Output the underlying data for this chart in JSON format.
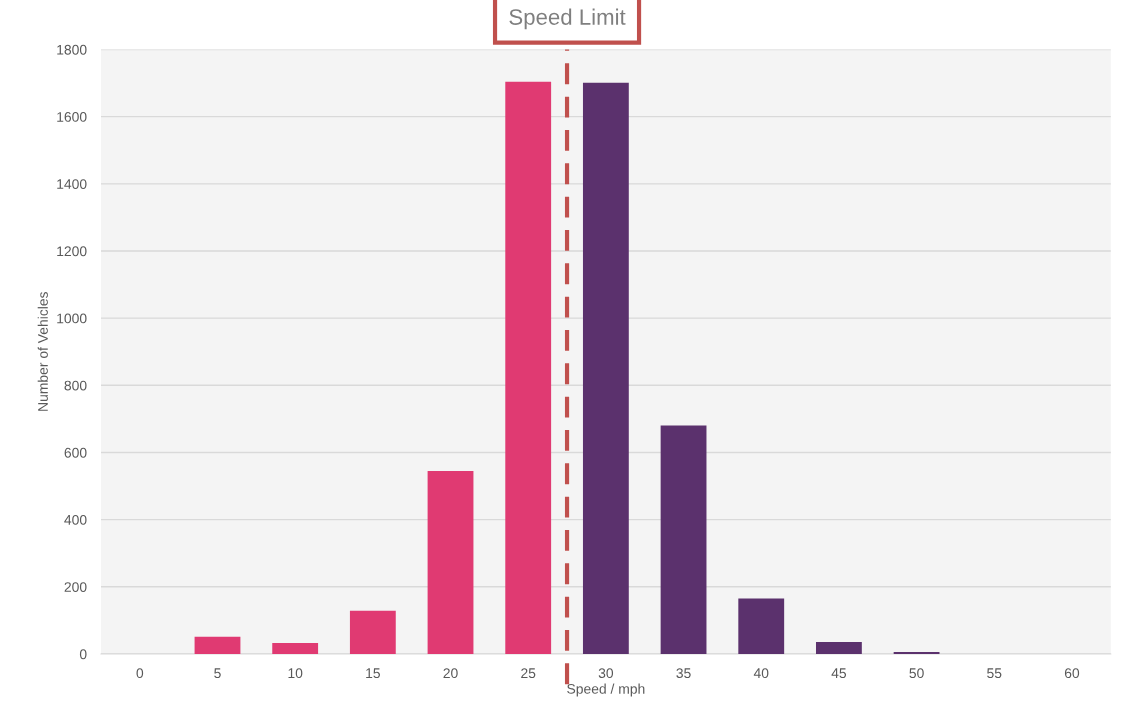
{
  "chart_data": {
    "type": "bar",
    "xlabel": "Speed / mph",
    "ylabel": "Number of Vehicles",
    "x": [
      0,
      5,
      10,
      15,
      20,
      25,
      30,
      35,
      40,
      45,
      50,
      55,
      60
    ],
    "values": [
      0,
      51,
      33,
      129,
      545,
      1704,
      1701,
      680,
      165,
      36,
      6,
      0,
      0
    ],
    "colors": [
      "#e03a72",
      "#e03a72",
      "#e03a72",
      "#e03a72",
      "#e03a72",
      "#e03a72",
      "#5b316d",
      "#5b316d",
      "#5b316d",
      "#5b316d",
      "#5b316d",
      "#5b316d",
      "#5b316d"
    ],
    "xlim": [
      -2.5,
      62.5
    ],
    "xticks": [
      0,
      5,
      10,
      15,
      20,
      25,
      30,
      35,
      40,
      45,
      50,
      55,
      60
    ],
    "ylim": [
      0,
      1800
    ],
    "yticks": [
      0,
      200,
      400,
      600,
      800,
      1000,
      1200,
      1400,
      1600,
      1800
    ],
    "grid": "y",
    "ref_lines": [
      {
        "axis": "x",
        "value": 27.5,
        "label": "Speed Limit",
        "color": "#c0504d",
        "line_style": "dashed"
      }
    ]
  }
}
